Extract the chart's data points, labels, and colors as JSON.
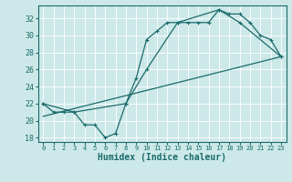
{
  "xlabel": "Humidex (Indice chaleur)",
  "bg_color": "#cde8e8",
  "grid_color": "#b8d8d8",
  "line_color": "#1a6b6b",
  "xlim": [
    -0.5,
    23.5
  ],
  "ylim": [
    17.5,
    33.5
  ],
  "xticks": [
    0,
    1,
    2,
    3,
    4,
    5,
    6,
    7,
    8,
    9,
    10,
    11,
    12,
    13,
    14,
    15,
    16,
    17,
    18,
    19,
    20,
    21,
    22,
    23
  ],
  "yticks": [
    18,
    20,
    22,
    24,
    26,
    28,
    30,
    32
  ],
  "line1_x": [
    0,
    1,
    2,
    3,
    4,
    5,
    6,
    7,
    8,
    9,
    10,
    11,
    12,
    13,
    14,
    15,
    16,
    17,
    18,
    19,
    20,
    21,
    22,
    23
  ],
  "line1_y": [
    22,
    21,
    21,
    21,
    19.5,
    19.5,
    18,
    18.5,
    22,
    25,
    29.5,
    30.5,
    31.5,
    31.5,
    31.5,
    31.5,
    31.5,
    33,
    32.5,
    32.5,
    31.5,
    30,
    29.5,
    27.5
  ],
  "line2_x": [
    0,
    3,
    8,
    10,
    13,
    17,
    19,
    23
  ],
  "line2_y": [
    22,
    21,
    22,
    26,
    31.5,
    33,
    31.5,
    27.5
  ],
  "line3_x": [
    0,
    23
  ],
  "line3_y": [
    20.5,
    27.5
  ]
}
